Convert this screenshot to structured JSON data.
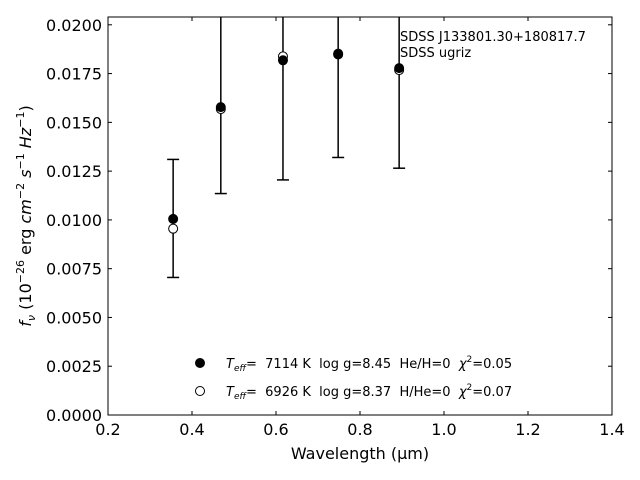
{
  "chart_data": {
    "type": "scatter",
    "xlim": [
      0.2,
      1.4
    ],
    "ylim": [
      0.0,
      0.0204
    ],
    "x_ticks": [
      0.2,
      0.4,
      0.6,
      0.8,
      1.0,
      1.2,
      1.4
    ],
    "y_ticks": [
      0.0,
      0.0025,
      0.005,
      0.0075,
      0.01,
      0.0125,
      0.015,
      0.0175,
      0.02
    ],
    "x_tick_labels": [
      "0.2",
      "0.4",
      "0.6",
      "0.8",
      "1.0",
      "1.2",
      "1.4"
    ],
    "y_tick_labels": [
      "0.0000",
      "0.0025",
      "0.0050",
      "0.0075",
      "0.0100",
      "0.0125",
      "0.0150",
      "0.0175",
      "0.0200"
    ],
    "xlabel": "Wavelength (μm)",
    "ylabel": {
      "f": "f",
      "sub": "ν",
      "pre": " (10",
      "exp1": "−26",
      "mid": " erg ",
      "cm": "cm",
      "exp2": "−2",
      "s": " s",
      "exp3": "−1",
      "hz": " Hz",
      "exp4": "−1",
      "post": ")"
    },
    "annotation": [
      "SDSS J133801.30+180817.7",
      "SDSS ugriz"
    ],
    "grid": false,
    "legend_position": "lower-center",
    "observed": {
      "x": [
        0.3551,
        0.4686,
        0.6166,
        0.748,
        0.8932
      ],
      "y": [
        0.01005,
        0.01578,
        0.01818,
        0.01848,
        0.01778
      ],
      "yerr_low": [
        0.00705,
        0.01135,
        0.01205,
        0.0132,
        0.01265
      ],
      "yerr_high": [
        0.0131,
        0.0204,
        0.0204,
        0.0204,
        0.0204
      ]
    },
    "series": [
      {
        "name": "He/H=0 model",
        "legend": {
          "teff_label": "T",
          "teff_sub": "eff",
          "text": "=  7114 K  log g=8.45  He/H=0  ",
          "chi": "χ",
          "chi_sup": "2",
          "chi_text": "=0.05"
        },
        "marker": "filled-circle",
        "x": [
          0.3551,
          0.4686,
          0.6166,
          0.748,
          0.8932
        ],
        "y": [
          0.01005,
          0.01578,
          0.01818,
          0.01848,
          0.01778
        ]
      },
      {
        "name": "H/He=0 model",
        "legend": {
          "teff_label": "T",
          "teff_sub": "eff",
          "text": "=  6926 K  log g=8.37  H/He=0  ",
          "chi": "χ",
          "chi_sup": "2",
          "chi_text": "=0.07"
        },
        "marker": "open-circle",
        "x": [
          0.3551,
          0.4686,
          0.6166,
          0.748,
          0.8932
        ],
        "y": [
          0.00955,
          0.01568,
          0.01838,
          0.01852,
          0.01768
        ]
      }
    ]
  }
}
